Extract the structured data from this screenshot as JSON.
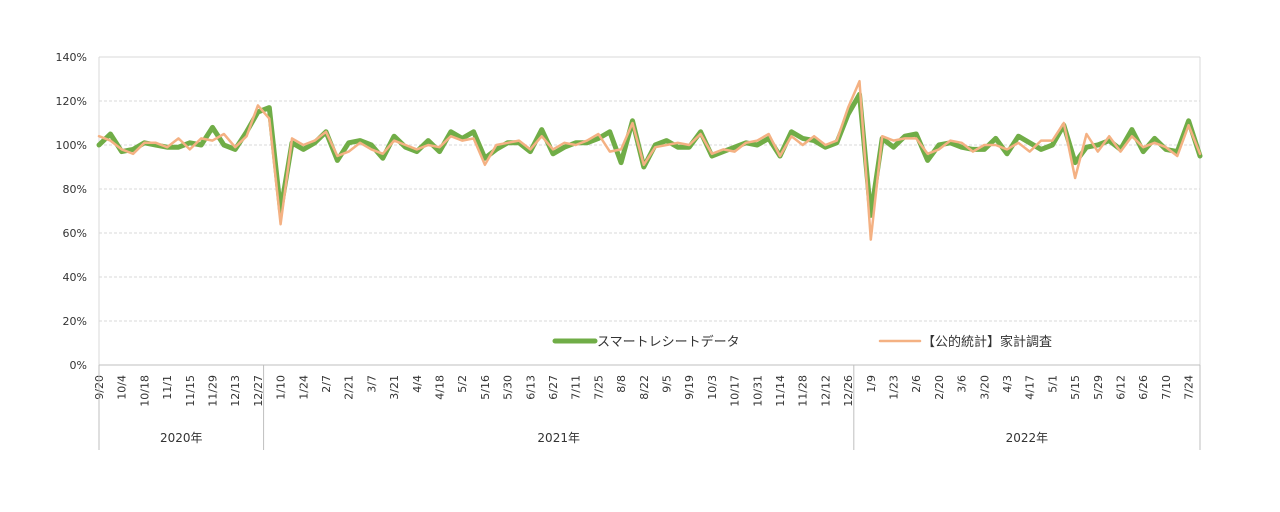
{
  "chart_data": {
    "type": "line",
    "title": "",
    "xlabel": "",
    "ylabel": "",
    "ylim": [
      0,
      140
    ],
    "y_ticks": [
      "0%",
      "20%",
      "40%",
      "60%",
      "80%",
      "100%",
      "120%",
      "140%"
    ],
    "grid": true,
    "legend_position": "bottom-right",
    "x_tick_labels": [
      "9/20",
      "10/4",
      "10/18",
      "11/1",
      "11/15",
      "11/29",
      "12/13",
      "12/27",
      "1/10",
      "1/24",
      "2/7",
      "2/21",
      "3/7",
      "3/21",
      "4/4",
      "4/18",
      "5/2",
      "5/16",
      "5/30",
      "6/13",
      "6/27",
      "7/11",
      "7/25",
      "8/8",
      "8/22",
      "9/5",
      "9/19",
      "10/3",
      "10/17",
      "10/31",
      "11/14",
      "11/28",
      "12/12",
      "12/26",
      "1/9",
      "1/23",
      "2/6",
      "2/20",
      "3/6",
      "3/20",
      "4/3",
      "4/17",
      "5/1",
      "5/15",
      "5/29",
      "6/12",
      "6/26",
      "7/10",
      "7/24"
    ],
    "years": [
      {
        "label": "2020年",
        "from": 0,
        "to": 15
      },
      {
        "label": "2021年",
        "from": 15,
        "to": 67
      },
      {
        "label": "2022年",
        "from": 67,
        "to": 98
      }
    ],
    "series": [
      {
        "name": "スマートレシートデータ",
        "color": "#70ad47",
        "values": [
          100,
          105,
          97,
          98,
          101,
          100,
          99,
          99,
          101,
          100,
          108,
          100,
          98,
          106,
          115,
          117,
          70,
          101,
          98,
          101,
          106,
          93,
          101,
          102,
          100,
          94,
          104,
          99,
          97,
          102,
          97,
          106,
          103,
          106,
          94,
          98,
          101,
          101,
          97,
          107,
          96,
          99,
          101,
          101,
          103,
          106,
          92,
          111,
          90,
          100,
          102,
          99,
          99,
          106,
          95,
          97,
          99,
          101,
          100,
          103,
          95,
          106,
          103,
          102,
          99,
          101,
          114,
          123,
          68,
          103,
          99,
          104,
          105,
          93,
          100,
          101,
          99,
          98,
          98,
          103,
          96,
          104,
          101,
          98,
          100,
          109,
          92,
          99,
          100,
          102,
          98,
          107,
          97,
          103,
          98,
          97,
          111,
          95
        ]
      },
      {
        "name": "【公的統計】家計調査",
        "color": "#f4b183",
        "values": [
          104,
          102,
          98,
          96,
          101,
          101,
          99,
          103,
          98,
          103,
          102,
          105,
          99,
          104,
          118,
          112,
          64,
          103,
          100,
          102,
          106,
          95,
          97,
          101,
          98,
          96,
          102,
          100,
          98,
          100,
          99,
          104,
          102,
          103,
          91,
          100,
          101,
          102,
          98,
          104,
          98,
          101,
          100,
          102,
          105,
          97,
          98,
          110,
          91,
          99,
          100,
          101,
          100,
          105,
          96,
          98,
          97,
          101,
          102,
          105,
          95,
          104,
          100,
          104,
          100,
          102,
          117,
          129,
          57,
          104,
          102,
          103,
          103,
          96,
          98,
          102,
          101,
          97,
          100,
          100,
          98,
          101,
          97,
          102,
          102,
          110,
          85,
          105,
          97,
          104,
          97,
          104,
          99,
          101,
          99,
          95,
          109,
          96
        ]
      }
    ]
  }
}
